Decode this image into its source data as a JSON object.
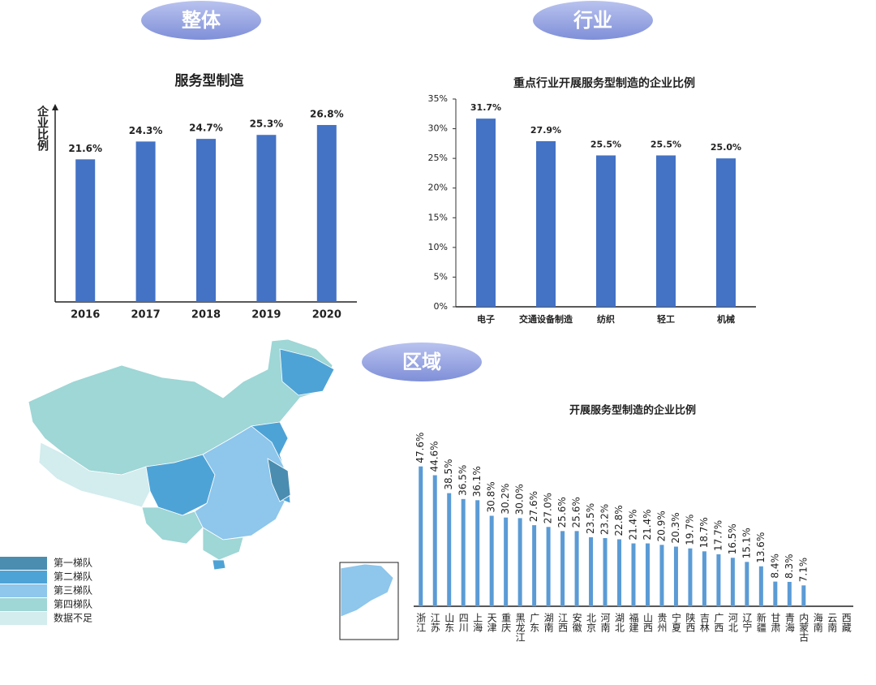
{
  "sections": {
    "overall": "整体",
    "industry": "行业",
    "region": "区域"
  },
  "map": {
    "legend": [
      {
        "label": "第一梯队",
        "color": "#4a8db0"
      },
      {
        "label": "第二梯队",
        "color": "#4ea3d6"
      },
      {
        "label": "第三梯队",
        "color": "#8ec6ec"
      },
      {
        "label": "第四梯队",
        "color": "#9fd6d6"
      },
      {
        "label": "数据不足",
        "color": "#d3ecee"
      }
    ]
  },
  "chart_data": [
    {
      "type": "bar",
      "title": "服务型制造",
      "y_label": "企业比例",
      "color": "#4472c4",
      "categories": [
        "2016",
        "2017",
        "2018",
        "2019",
        "2020"
      ],
      "values": [
        21.6,
        24.3,
        24.7,
        25.3,
        26.8
      ],
      "value_labels": [
        "21.6%",
        "24.3%",
        "24.7%",
        "25.3%",
        "26.8%"
      ],
      "ylim": [
        0,
        30
      ]
    },
    {
      "type": "bar",
      "title": "重点行业开展服务型制造的企业比例",
      "color": "#4472c4",
      "categories": [
        "电子",
        "交通设备制造",
        "纺织",
        "轻工",
        "机械"
      ],
      "values": [
        31.7,
        27.9,
        25.5,
        25.5,
        25.0
      ],
      "value_labels": [
        "31.7%",
        "27.9%",
        "25.5%",
        "25.5%",
        "25.0%"
      ],
      "ylim": [
        0,
        35
      ],
      "yticks": [
        {
          "value": 0,
          "label": "0%"
        },
        {
          "value": 5,
          "label": "5%"
        },
        {
          "value": 10,
          "label": "10%"
        },
        {
          "value": 15,
          "label": "15%"
        },
        {
          "value": 20,
          "label": "20%"
        },
        {
          "value": 25,
          "label": "25%"
        },
        {
          "value": 30,
          "label": "30%"
        },
        {
          "value": 35,
          "label": "35%"
        }
      ]
    },
    {
      "type": "bar",
      "title": "开展服务型制造的企业比例",
      "color": "#5b9bd5",
      "categories": [
        "浙江",
        "江苏",
        "山东",
        "四川",
        "上海",
        "天津",
        "重庆",
        "黑龙江",
        "广东",
        "湖南",
        "江西",
        "安徽",
        "北京",
        "河南",
        "湖北",
        "福建",
        "山西",
        "贵州",
        "宁夏",
        "陕西",
        "吉林",
        "广西",
        "河北",
        "辽宁",
        "新疆",
        "甘肃",
        "青海",
        "内蒙古",
        "海南",
        "云南",
        "西藏"
      ],
      "values": [
        47.6,
        44.6,
        38.5,
        36.5,
        36.1,
        30.8,
        30.2,
        30.0,
        27.6,
        27.0,
        25.6,
        25.6,
        23.5,
        23.2,
        22.8,
        21.4,
        21.4,
        20.9,
        20.3,
        19.7,
        18.7,
        17.7,
        16.5,
        15.1,
        13.6,
        8.4,
        8.3,
        7.1,
        null,
        null,
        null
      ],
      "value_labels": [
        "47.6%",
        "44.6%",
        "38.5%",
        "36.5%",
        "36.1%",
        "30.8%",
        "30.2%",
        "30.0%",
        "27.6%",
        "27.0%",
        "25.6%",
        "25.6%",
        "23.5%",
        "23.2%",
        "22.8%",
        "21.4%",
        "21.4%",
        "20.9%",
        "20.3%",
        "19.7%",
        "18.7%",
        "17.7%",
        "16.5%",
        "15.1%",
        "13.6%",
        "8.4%",
        "8.3%",
        "7.1%",
        null,
        null,
        null
      ],
      "ylim": [
        0,
        50
      ]
    }
  ]
}
